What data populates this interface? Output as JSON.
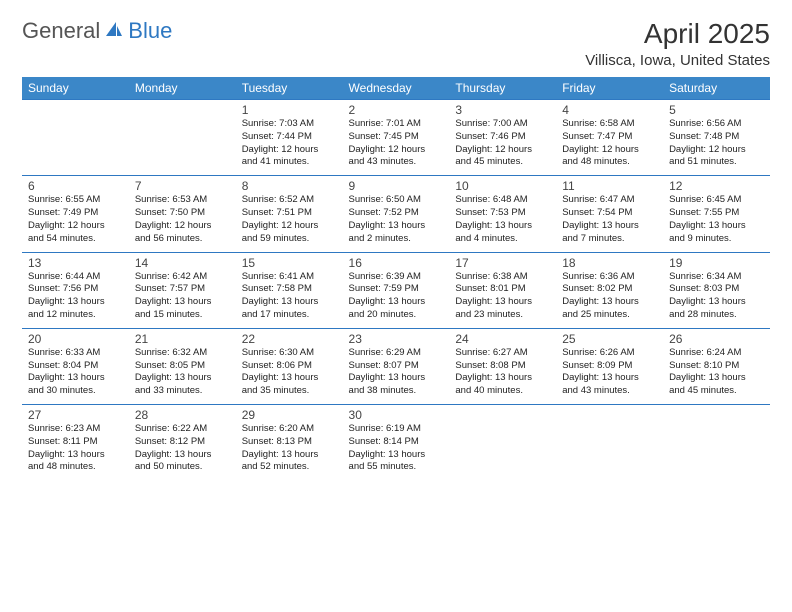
{
  "brand": {
    "text1": "General",
    "text2": "Blue",
    "logo_color": "#2e78c2"
  },
  "title": "April 2025",
  "location": "Villisca, Iowa, United States",
  "colors": {
    "header_bg": "#3b87c8",
    "header_text": "#ffffff",
    "rule": "#2e78c2",
    "text": "#222222"
  },
  "dayHeaders": [
    "Sunday",
    "Monday",
    "Tuesday",
    "Wednesday",
    "Thursday",
    "Friday",
    "Saturday"
  ],
  "weeks": [
    [
      null,
      null,
      {
        "n": "1",
        "sr": "7:03 AM",
        "ss": "7:44 PM",
        "dl": "12 hours and 41 minutes."
      },
      {
        "n": "2",
        "sr": "7:01 AM",
        "ss": "7:45 PM",
        "dl": "12 hours and 43 minutes."
      },
      {
        "n": "3",
        "sr": "7:00 AM",
        "ss": "7:46 PM",
        "dl": "12 hours and 45 minutes."
      },
      {
        "n": "4",
        "sr": "6:58 AM",
        "ss": "7:47 PM",
        "dl": "12 hours and 48 minutes."
      },
      {
        "n": "5",
        "sr": "6:56 AM",
        "ss": "7:48 PM",
        "dl": "12 hours and 51 minutes."
      }
    ],
    [
      {
        "n": "6",
        "sr": "6:55 AM",
        "ss": "7:49 PM",
        "dl": "12 hours and 54 minutes."
      },
      {
        "n": "7",
        "sr": "6:53 AM",
        "ss": "7:50 PM",
        "dl": "12 hours and 56 minutes."
      },
      {
        "n": "8",
        "sr": "6:52 AM",
        "ss": "7:51 PM",
        "dl": "12 hours and 59 minutes."
      },
      {
        "n": "9",
        "sr": "6:50 AM",
        "ss": "7:52 PM",
        "dl": "13 hours and 2 minutes."
      },
      {
        "n": "10",
        "sr": "6:48 AM",
        "ss": "7:53 PM",
        "dl": "13 hours and 4 minutes."
      },
      {
        "n": "11",
        "sr": "6:47 AM",
        "ss": "7:54 PM",
        "dl": "13 hours and 7 minutes."
      },
      {
        "n": "12",
        "sr": "6:45 AM",
        "ss": "7:55 PM",
        "dl": "13 hours and 9 minutes."
      }
    ],
    [
      {
        "n": "13",
        "sr": "6:44 AM",
        "ss": "7:56 PM",
        "dl": "13 hours and 12 minutes."
      },
      {
        "n": "14",
        "sr": "6:42 AM",
        "ss": "7:57 PM",
        "dl": "13 hours and 15 minutes."
      },
      {
        "n": "15",
        "sr": "6:41 AM",
        "ss": "7:58 PM",
        "dl": "13 hours and 17 minutes."
      },
      {
        "n": "16",
        "sr": "6:39 AM",
        "ss": "7:59 PM",
        "dl": "13 hours and 20 minutes."
      },
      {
        "n": "17",
        "sr": "6:38 AM",
        "ss": "8:01 PM",
        "dl": "13 hours and 23 minutes."
      },
      {
        "n": "18",
        "sr": "6:36 AM",
        "ss": "8:02 PM",
        "dl": "13 hours and 25 minutes."
      },
      {
        "n": "19",
        "sr": "6:34 AM",
        "ss": "8:03 PM",
        "dl": "13 hours and 28 minutes."
      }
    ],
    [
      {
        "n": "20",
        "sr": "6:33 AM",
        "ss": "8:04 PM",
        "dl": "13 hours and 30 minutes."
      },
      {
        "n": "21",
        "sr": "6:32 AM",
        "ss": "8:05 PM",
        "dl": "13 hours and 33 minutes."
      },
      {
        "n": "22",
        "sr": "6:30 AM",
        "ss": "8:06 PM",
        "dl": "13 hours and 35 minutes."
      },
      {
        "n": "23",
        "sr": "6:29 AM",
        "ss": "8:07 PM",
        "dl": "13 hours and 38 minutes."
      },
      {
        "n": "24",
        "sr": "6:27 AM",
        "ss": "8:08 PM",
        "dl": "13 hours and 40 minutes."
      },
      {
        "n": "25",
        "sr": "6:26 AM",
        "ss": "8:09 PM",
        "dl": "13 hours and 43 minutes."
      },
      {
        "n": "26",
        "sr": "6:24 AM",
        "ss": "8:10 PM",
        "dl": "13 hours and 45 minutes."
      }
    ],
    [
      {
        "n": "27",
        "sr": "6:23 AM",
        "ss": "8:11 PM",
        "dl": "13 hours and 48 minutes."
      },
      {
        "n": "28",
        "sr": "6:22 AM",
        "ss": "8:12 PM",
        "dl": "13 hours and 50 minutes."
      },
      {
        "n": "29",
        "sr": "6:20 AM",
        "ss": "8:13 PM",
        "dl": "13 hours and 52 minutes."
      },
      {
        "n": "30",
        "sr": "6:19 AM",
        "ss": "8:14 PM",
        "dl": "13 hours and 55 minutes."
      },
      null,
      null,
      null
    ]
  ],
  "labels": {
    "sunrise": "Sunrise: ",
    "sunset": "Sunset: ",
    "daylight": "Daylight: "
  }
}
